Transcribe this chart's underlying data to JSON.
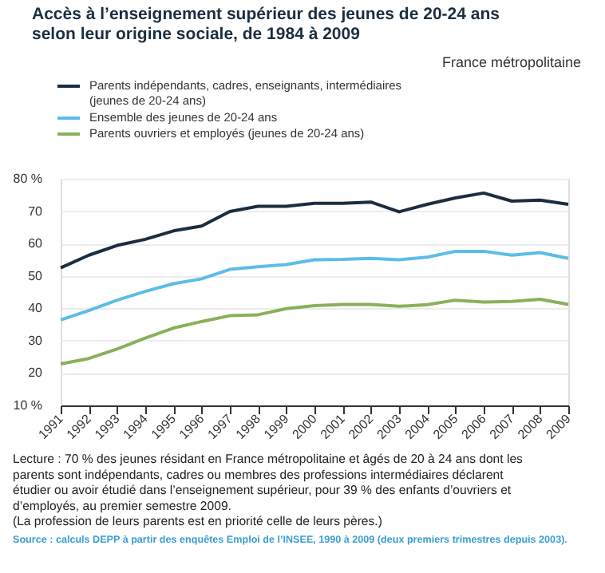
{
  "chart_data": {
    "type": "line",
    "title": "Accès à l’enseignement supérieur des jeunes de 20-24 ans selon leur origine sociale, de 1984 à 2009",
    "subtitle": "France métropolitaine",
    "categories": [
      "1991",
      "1992",
      "1993",
      "1994",
      "1995",
      "1996",
      "1997",
      "1998",
      "1999",
      "2000",
      "2001",
      "2002",
      "2003",
      "2004",
      "2005",
      "2006",
      "2007",
      "2008",
      "2009"
    ],
    "series": [
      {
        "name": "Parents indépendants, cadres, enseignants, intermédiaires (jeunes de 20-24 ans)",
        "color": "#1b2d3f",
        "values": [
          52.5,
          56.4,
          59.4,
          61.3,
          63.9,
          65.4,
          69.9,
          71.5,
          71.5,
          72.4,
          72.4,
          72.8,
          69.8,
          72.1,
          74.1,
          75.6,
          73.1,
          73.4,
          72.1
        ]
      },
      {
        "name": "Ensemble des jeunes de 20-24 ans",
        "color": "#5bbde8",
        "values": [
          36.4,
          39.3,
          42.5,
          45.2,
          47.6,
          49.1,
          52.0,
          52.8,
          53.5,
          55.0,
          55.1,
          55.4,
          55.0,
          55.8,
          57.6,
          57.6,
          56.4,
          57.2,
          55.4
        ]
      },
      {
        "name": "Parents ouvriers et employés (jeunes de 20-24 ans)",
        "color": "#8ab05a",
        "values": [
          22.8,
          24.5,
          27.4,
          30.8,
          33.9,
          35.9,
          37.7,
          38.0,
          39.9,
          40.8,
          41.2,
          41.2,
          40.6,
          41.1,
          42.5,
          41.9,
          42.1,
          42.8,
          41.2
        ]
      }
    ],
    "ylim": [
      10,
      80
    ],
    "yticks": [
      {
        "value": 10,
        "label": "10 %"
      },
      20,
      30,
      40,
      50,
      60,
      {
        "value": 80,
        "label": "80 %"
      },
      70
    ],
    "grid": "y",
    "legend": "top",
    "marker": "none",
    "line_style": "solid",
    "annotations": [
      "Lecture : 70 % des jeunes résidant en France métropolitaine et âgés de 20 à 24 ans dont les parents sont indépendants, cadres ou membres des professions intermédiaires déclarent étudier ou avoir étudié dans l’enseignement supérieur, pour 39 % des enfants d’ouvriers et d’employés, au premier semestre 2009.",
      "(La profession de leurs parents est en priorité celle de leurs pères.)",
      "Source : calculs DEPP à partir des enquêtes Emploi de l’INSEE, 1990 à 2009 (deux premiers trimestres depuis 2003)."
    ]
  }
}
